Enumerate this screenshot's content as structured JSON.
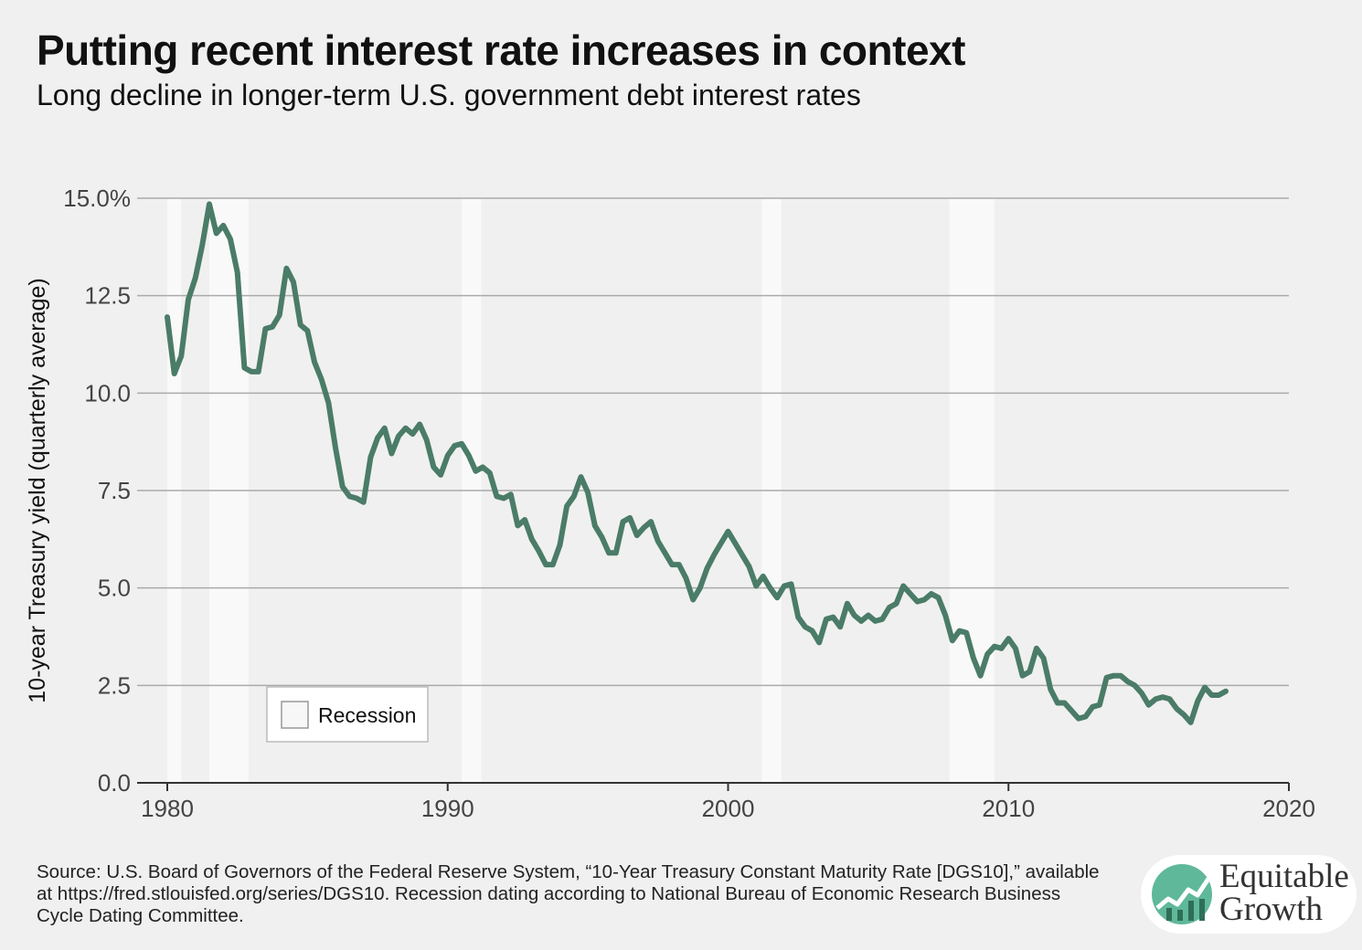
{
  "chart_data": {
    "type": "line",
    "title": "Putting recent interest rate increases in context",
    "subtitle": "Long decline in longer-term U.S. government debt interest rates",
    "ylabel": "10-year Treasury yield (quarterly average)",
    "xlabel": "",
    "xlim": [
      1980,
      2020
    ],
    "ylim": [
      0,
      15
    ],
    "x_ticks": [
      {
        "value": 1980,
        "label": "1980"
      },
      {
        "value": 1990,
        "label": "1990"
      },
      {
        "value": 2000,
        "label": "2000"
      },
      {
        "value": 2010,
        "label": "2010"
      },
      {
        "value": 2020,
        "label": "2020"
      }
    ],
    "y_ticks": [
      {
        "value": 0,
        "label": "0.0"
      },
      {
        "value": 2.5,
        "label": "2.5"
      },
      {
        "value": 5,
        "label": "5.0"
      },
      {
        "value": 7.5,
        "label": "7.5"
      },
      {
        "value": 10,
        "label": "10.0"
      },
      {
        "value": 12.5,
        "label": "12.5"
      },
      {
        "value": 15,
        "label": "15.0%"
      }
    ],
    "grid": true,
    "legend": {
      "label": "Recession",
      "placement": "bottom-left"
    },
    "recessions": [
      [
        1980.0,
        1980.5
      ],
      [
        1981.5,
        1982.9
      ],
      [
        1990.5,
        1991.2
      ],
      [
        2001.2,
        2001.9
      ],
      [
        2007.9,
        2009.5
      ]
    ],
    "series": [
      {
        "name": "",
        "color": "#4a7c68",
        "x": [
          1980.0,
          1980.25,
          1980.5,
          1980.75,
          1981.0,
          1981.25,
          1981.5,
          1981.75,
          1982.0,
          1982.25,
          1982.5,
          1982.75,
          1983.0,
          1983.25,
          1983.5,
          1983.75,
          1984.0,
          1984.25,
          1984.5,
          1984.75,
          1985.0,
          1985.25,
          1985.5,
          1985.75,
          1986.0,
          1986.25,
          1986.5,
          1986.75,
          1987.0,
          1987.25,
          1987.5,
          1987.75,
          1988.0,
          1988.25,
          1988.5,
          1988.75,
          1989.0,
          1989.25,
          1989.5,
          1989.75,
          1990.0,
          1990.25,
          1990.5,
          1990.75,
          1991.0,
          1991.25,
          1991.5,
          1991.75,
          1992.0,
          1992.25,
          1992.5,
          1992.75,
          1993.0,
          1993.25,
          1993.5,
          1993.75,
          1994.0,
          1994.25,
          1994.5,
          1994.75,
          1995.0,
          1995.25,
          1995.5,
          1995.75,
          1996.0,
          1996.25,
          1996.5,
          1996.75,
          1997.0,
          1997.25,
          1997.5,
          1997.75,
          1998.0,
          1998.25,
          1998.5,
          1998.75,
          1999.0,
          1999.25,
          1999.5,
          1999.75,
          2000.0,
          2000.25,
          2000.5,
          2000.75,
          2001.0,
          2001.25,
          2001.5,
          2001.75,
          2002.0,
          2002.25,
          2002.5,
          2002.75,
          2003.0,
          2003.25,
          2003.5,
          2003.75,
          2004.0,
          2004.25,
          2004.5,
          2004.75,
          2005.0,
          2005.25,
          2005.5,
          2005.75,
          2006.0,
          2006.25,
          2006.5,
          2006.75,
          2007.0,
          2007.25,
          2007.5,
          2007.75,
          2008.0,
          2008.25,
          2008.5,
          2008.75,
          2009.0,
          2009.25,
          2009.5,
          2009.75,
          2010.0,
          2010.25,
          2010.5,
          2010.75,
          2011.0,
          2011.25,
          2011.5,
          2011.75,
          2012.0,
          2012.25,
          2012.5,
          2012.75,
          2013.0,
          2013.25,
          2013.5,
          2013.75,
          2014.0,
          2014.25,
          2014.5,
          2014.75,
          2015.0,
          2015.25,
          2015.5,
          2015.75,
          2016.0,
          2016.25,
          2016.5,
          2016.75,
          2017.0,
          2017.25,
          2017.5,
          2017.75
        ],
        "values": [
          11.95,
          10.5,
          10.95,
          12.4,
          12.95,
          13.8,
          14.85,
          14.1,
          14.3,
          13.95,
          13.1,
          10.65,
          10.55,
          10.55,
          11.65,
          11.7,
          12.0,
          13.2,
          12.85,
          11.75,
          11.6,
          10.8,
          10.35,
          9.75,
          8.6,
          7.6,
          7.35,
          7.3,
          7.2,
          8.35,
          8.85,
          9.1,
          8.45,
          8.9,
          9.1,
          8.95,
          9.2,
          8.8,
          8.1,
          7.9,
          8.4,
          8.65,
          8.7,
          8.4,
          8.0,
          8.1,
          7.95,
          7.35,
          7.3,
          7.4,
          6.6,
          6.75,
          6.25,
          5.95,
          5.6,
          5.6,
          6.1,
          7.1,
          7.35,
          7.85,
          7.45,
          6.6,
          6.3,
          5.9,
          5.9,
          6.7,
          6.8,
          6.35,
          6.55,
          6.7,
          6.2,
          5.9,
          5.6,
          5.6,
          5.25,
          4.7,
          5.0,
          5.5,
          5.85,
          6.15,
          6.45,
          6.15,
          5.85,
          5.55,
          5.05,
          5.3,
          5.0,
          4.75,
          5.05,
          5.1,
          4.25,
          4.0,
          3.9,
          3.6,
          4.2,
          4.25,
          4.0,
          4.6,
          4.3,
          4.15,
          4.3,
          4.15,
          4.2,
          4.5,
          4.6,
          5.05,
          4.85,
          4.65,
          4.7,
          4.85,
          4.75,
          4.3,
          3.65,
          3.9,
          3.85,
          3.2,
          2.75,
          3.3,
          3.5,
          3.45,
          3.7,
          3.45,
          2.75,
          2.85,
          3.45,
          3.2,
          2.4,
          2.05,
          2.05,
          1.85,
          1.65,
          1.7,
          1.95,
          2.0,
          2.7,
          2.75,
          2.75,
          2.6,
          2.5,
          2.3,
          2.0,
          2.15,
          2.2,
          2.15,
          1.9,
          1.75,
          1.55,
          2.1,
          2.45,
          2.25,
          2.25,
          2.35
        ]
      }
    ]
  },
  "source_text": "Source: U.S. Board of Governors of the Federal Reserve System, “10-Year Treasury Constant Maturity Rate [DGS10],” available at https://fred.stlouisfed.org/series/DGS10. Recession dating according to National Bureau of Economic Research Business Cycle Dating Committee.",
  "logo": {
    "line1": "Equitable",
    "line2": "Growth",
    "icon": "rising-chart-logo-icon",
    "accent": "#5fb89a"
  }
}
